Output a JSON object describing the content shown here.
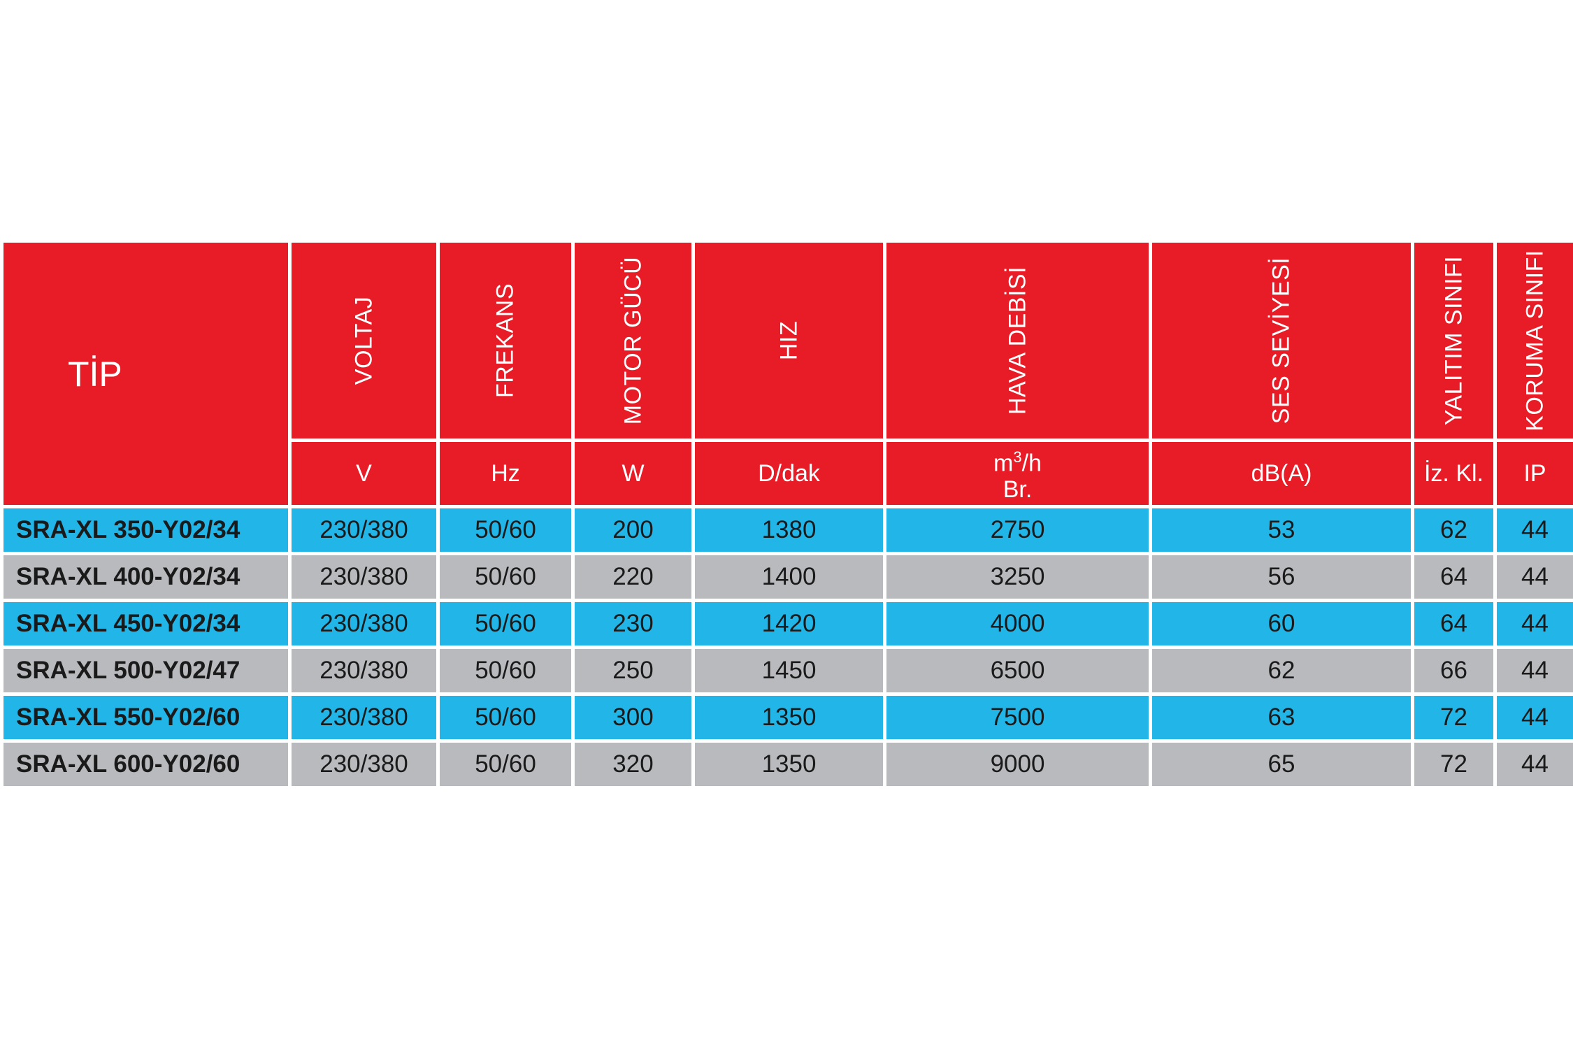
{
  "table": {
    "tip_header": "TİP",
    "columns": [
      {
        "name": "VOLTAJ",
        "unit": "V"
      },
      {
        "name": "FREKANS",
        "unit": "Hz"
      },
      {
        "name": "MOTOR GÜCÜ",
        "unit": "W"
      },
      {
        "name": "HIZ",
        "unit": "D/dak"
      },
      {
        "name": "HAVA DEBİSİ",
        "unit_main": "m",
        "unit_sup": "3",
        "unit_after": "/h",
        "unit_line2": "Br."
      },
      {
        "name": "SES SEVİYESİ",
        "unit": "dB(A)"
      },
      {
        "name": "YALITIM SINIFI",
        "unit": "İz. Kl."
      },
      {
        "name": "KORUMA SINIFI",
        "unit": "IP"
      }
    ],
    "rows": [
      {
        "tip": "SRA-XL 350-Y02/34",
        "values": [
          "230/380",
          "50/60",
          "200",
          "1380",
          "2750",
          "53",
          "62",
          "44"
        ]
      },
      {
        "tip": "SRA-XL 400-Y02/34",
        "values": [
          "230/380",
          "50/60",
          "220",
          "1400",
          "3250",
          "56",
          "64",
          "44"
        ]
      },
      {
        "tip": "SRA-XL 450-Y02/34",
        "values": [
          "230/380",
          "50/60",
          "230",
          "1420",
          "4000",
          "60",
          "64",
          "44"
        ]
      },
      {
        "tip": "SRA-XL 500-Y02/47",
        "values": [
          "230/380",
          "50/60",
          "250",
          "1450",
          "6500",
          "62",
          "66",
          "44"
        ]
      },
      {
        "tip": "SRA-XL 550-Y02/60",
        "values": [
          "230/380",
          "50/60",
          "300",
          "1350",
          "7500",
          "63",
          "72",
          "44"
        ]
      },
      {
        "tip": "SRA-XL 600-Y02/60",
        "values": [
          "230/380",
          "50/60",
          "320",
          "1350",
          "9000",
          "65",
          "72",
          "44"
        ]
      }
    ]
  },
  "colors": {
    "header_red": "#e81c27",
    "row_blue": "#21b5e8",
    "row_grey": "#b9babd"
  }
}
